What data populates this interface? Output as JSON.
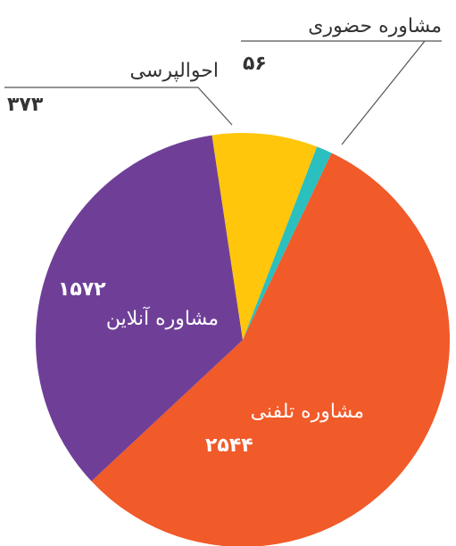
{
  "chart_data": {
    "type": "pie",
    "categories": [
      "مشاوره حضوری",
      "مشاوره تلفنی",
      "مشاوره آنلاین",
      "احوالپرسی"
    ],
    "values": [
      56,
      2544,
      1572,
      373
    ],
    "value_labels": [
      "۵۶",
      "۲۵۴۴",
      "۱۵۷۲",
      "۳۷۳"
    ],
    "colors": [
      "#2bbfbf",
      "#f15a29",
      "#6f3f98",
      "#ffc60b"
    ]
  }
}
